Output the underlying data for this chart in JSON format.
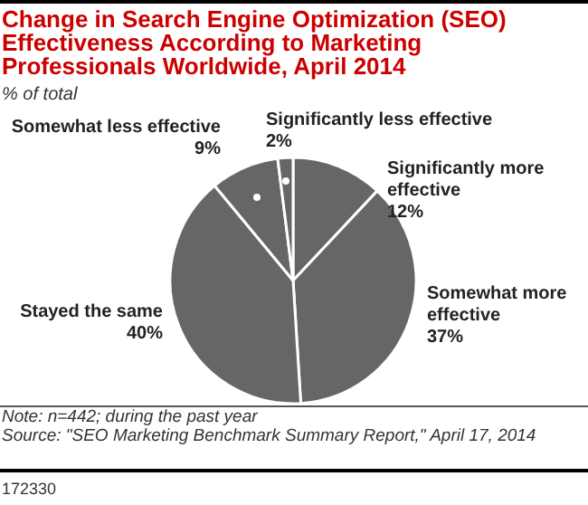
{
  "chart_data": {
    "type": "pie",
    "title": "Change in Search Engine Optimization (SEO) Effectiveness According to Marketing Professionals Worldwide, April 2014",
    "subtitle": "% of total",
    "categories": [
      "Significantly more effective",
      "Somewhat more effective",
      "Stayed the same",
      "Somewhat less effective",
      "Significantly less effective"
    ],
    "values": [
      12,
      37,
      40,
      9,
      2
    ],
    "value_labels": [
      "12%",
      "37%",
      "40%",
      "9%",
      "2%"
    ],
    "colors": [
      "#666666",
      "#666666",
      "#666666",
      "#666666",
      "#666666"
    ],
    "annotations": [
      "Note: n=442; during the past year",
      "Source: \"SEO Marketing Benchmark Summary Report,\" April 17, 2014",
      "172330"
    ]
  }
}
